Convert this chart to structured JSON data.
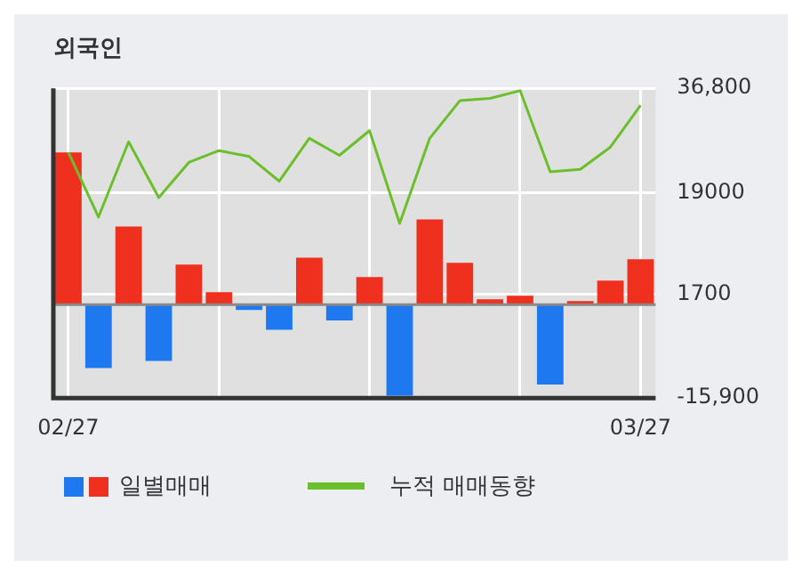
{
  "chart_data": {
    "type": "bar",
    "title": "외국인",
    "categories": [
      "02/27",
      null,
      null,
      null,
      null,
      null,
      null,
      null,
      null,
      null,
      null,
      null,
      null,
      null,
      null,
      null,
      null,
      null,
      null,
      "03/27"
    ],
    "series": [
      {
        "name": "일별매매",
        "colors": [
          "#f0301e",
          "#1e78f0",
          "#f0301e",
          "#1e78f0",
          "#f0301e",
          "#f0301e",
          "#1e78f0",
          "#1e78f0",
          "#f0301e",
          "#1e78f0",
          "#f0301e",
          "#1e78f0",
          "#f0301e",
          "#f0301e",
          "#f0301e",
          "#f0301e",
          "#1e78f0",
          "#f0301e",
          "#f0301e",
          "#f0301e"
        ],
        "values": [
          25900,
          -10800,
          13300,
          -9600,
          6800,
          2100,
          -900,
          -4300,
          8000,
          -2700,
          4700,
          -15500,
          14500,
          7100,
          900,
          1500,
          -13600,
          600,
          4100,
          7700
        ]
      },
      {
        "name": "누적 매매동향",
        "type": "line",
        "color": "#6abf2a",
        "values": [
          25900,
          14900,
          27700,
          18200,
          24200,
          26200,
          25200,
          21000,
          28300,
          25400,
          29600,
          13800,
          28300,
          34700,
          35100,
          36400,
          22600,
          23000,
          26800,
          33900
        ]
      }
    ],
    "ylim": [
      -15900,
      36800
    ],
    "yticks": [
      {
        "value": 36800,
        "label": "36,800"
      },
      19000,
      1700,
      {
        "value": -15900,
        "label": "-15,900"
      }
    ],
    "grid": true,
    "legend": "bottom"
  }
}
